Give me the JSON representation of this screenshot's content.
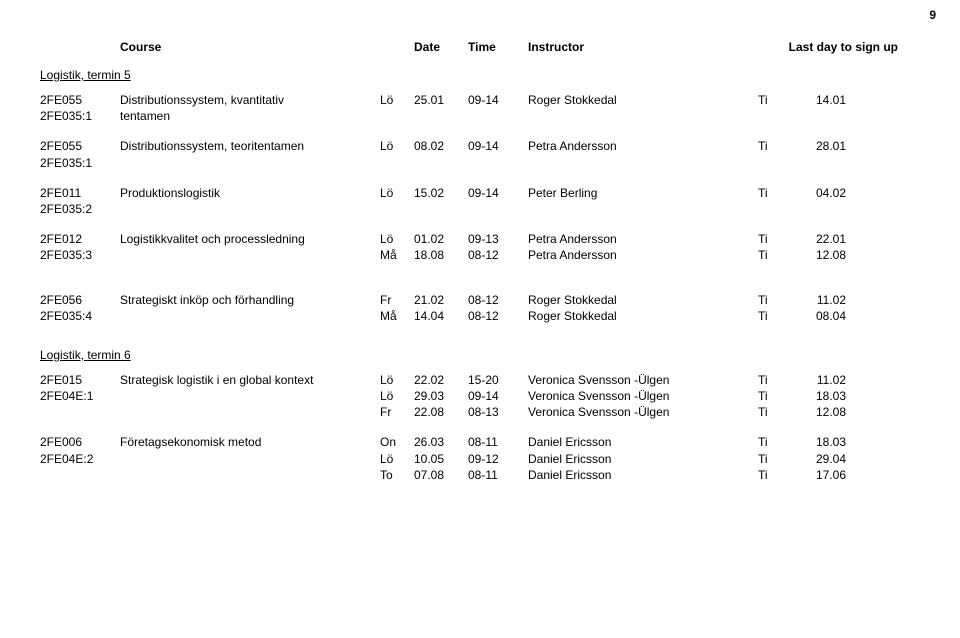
{
  "page_number": "9",
  "header": {
    "course": "Course",
    "date": "Date",
    "time": "Time",
    "instructor": "Instructor",
    "last_day": "Last day to sign up"
  },
  "sections": [
    {
      "title": "Logistik, termin 5",
      "blocks": [
        {
          "rows": [
            {
              "code": "2FE055",
              "course": "Distributionssystem, kvantitativ",
              "day": "Lö",
              "date": "25.01",
              "time": "09-14",
              "instructor": "Roger Stokkedal",
              "sday": "Ti",
              "signup": "14.01"
            },
            {
              "code": "2FE035:1",
              "course": "tentamen",
              "day": "",
              "date": "",
              "time": "",
              "instructor": "",
              "sday": "",
              "signup": ""
            }
          ]
        },
        {
          "rows": [
            {
              "code": "2FE055",
              "course": "Distributionssystem, teoritentamen",
              "day": "Lö",
              "date": "08.02",
              "time": "09-14",
              "instructor": "Petra Andersson",
              "sday": "Ti",
              "signup": "28.01"
            },
            {
              "code": "2FE035:1",
              "course": "",
              "day": "",
              "date": "",
              "time": "",
              "instructor": "",
              "sday": "",
              "signup": ""
            }
          ]
        },
        {
          "rows": [
            {
              "code": "2FE011",
              "course": "Produktionslogistik",
              "day": "Lö",
              "date": "15.02",
              "time": "09-14",
              "instructor": "Peter Berling",
              "sday": "Ti",
              "signup": "04.02"
            },
            {
              "code": "2FE035:2",
              "course": "",
              "day": "",
              "date": "",
              "time": "",
              "instructor": "",
              "sday": "",
              "signup": ""
            }
          ]
        },
        {
          "rows": [
            {
              "code": "2FE012",
              "course": "Logistikkvalitet och processledning",
              "day": "Lö",
              "date": "01.02",
              "time": "09-13",
              "instructor": "Petra Andersson",
              "sday": "Ti",
              "signup": "22.01"
            },
            {
              "code": "2FE035:3",
              "course": "",
              "day": "Må",
              "date": "18.08",
              "time": "08-12",
              "instructor": "Petra Andersson",
              "sday": "Ti",
              "signup": "12.08"
            }
          ]
        },
        {
          "rows": [
            {
              "code": "2FE056",
              "course": "Strategiskt inköp och förhandling",
              "day": "Fr",
              "date": "21.02",
              "time": "08-12",
              "instructor": "Roger Stokkedal",
              "sday": "Ti",
              "signup": "11.02"
            },
            {
              "code": "2FE035:4",
              "course": "",
              "day": "Må",
              "date": "14.04",
              "time": "08-12",
              "instructor": "Roger Stokkedal",
              "sday": "Ti",
              "signup": "08.04"
            }
          ],
          "extra_gap": true
        }
      ]
    },
    {
      "title": "Logistik, termin 6",
      "blocks": [
        {
          "rows": [
            {
              "code": "2FE015",
              "course": "Strategisk logistik i en global kontext",
              "day": "Lö",
              "date": "22.02",
              "time": "15-20",
              "instructor": "Veronica Svensson -Ülgen",
              "sday": "Ti",
              "signup": "11.02"
            },
            {
              "code": "2FE04E:1",
              "course": "",
              "day": "Lö",
              "date": "29.03",
              "time": "09-14",
              "instructor": "Veronica Svensson -Ülgen",
              "sday": "Ti",
              "signup": "18.03"
            },
            {
              "code": "",
              "course": "",
              "day": "Fr",
              "date": "22.08",
              "time": "08-13",
              "instructor": "Veronica Svensson -Ülgen",
              "sday": "Ti",
              "signup": "12.08"
            }
          ]
        },
        {
          "rows": [
            {
              "code": "2FE006",
              "course": "Företagsekonomisk metod",
              "day": "On",
              "date": "26.03",
              "time": "08-11",
              "instructor": "Daniel Ericsson",
              "sday": "Ti",
              "signup": "18.03"
            },
            {
              "code": "2FE04E:2",
              "course": "",
              "day": "Lö",
              "date": "10.05",
              "time": "09-12",
              "instructor": "Daniel Ericsson",
              "sday": "Ti",
              "signup": "29.04"
            },
            {
              "code": "",
              "course": "",
              "day": "To",
              "date": "07.08",
              "time": "08-11",
              "instructor": "Daniel Ericsson",
              "sday": "Ti",
              "signup": "17.06"
            }
          ]
        }
      ]
    }
  ]
}
